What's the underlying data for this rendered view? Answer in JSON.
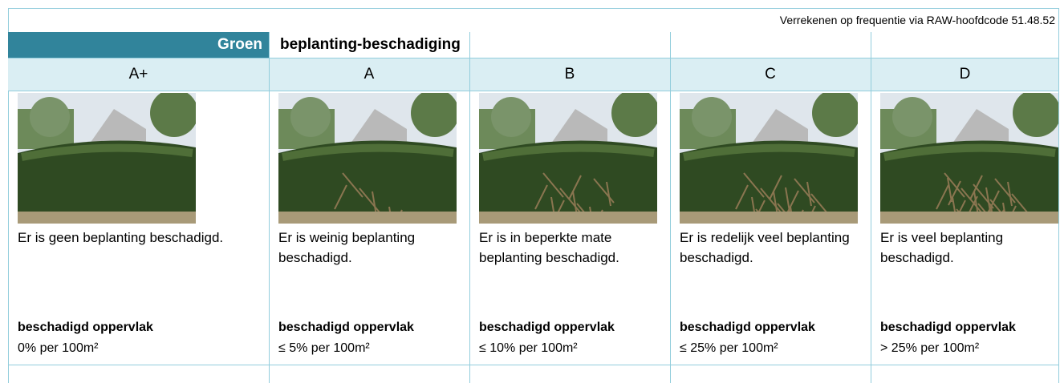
{
  "header": {
    "note": "Verrekenen op frequentie via RAW-hoofdcode 51.48.52",
    "category": "Groen",
    "title": "beplanting-beschadiging"
  },
  "columns": [
    {
      "grade": "A+",
      "description": "Er is geen beplanting beschadigd.",
      "measure_label": "beschadigd oppervlak",
      "measure_value": "0% per 100m²"
    },
    {
      "grade": "A",
      "description": "Er is weinig beplanting beschadigd.",
      "measure_label": "beschadigd oppervlak",
      "measure_value": "≤ 5% per 100m²"
    },
    {
      "grade": "B",
      "description": "Er is in beperkte mate beplanting beschadigd.",
      "measure_label": "beschadigd oppervlak",
      "measure_value": "≤ 10% per 100m²"
    },
    {
      "grade": "C",
      "description": "Er is redelijk veel beplanting beschadigd.",
      "measure_label": "beschadigd oppervlak",
      "measure_value": "≤ 25% per 100m²"
    },
    {
      "grade": "D",
      "description": "Er is veel beplanting beschadigd.",
      "measure_label": "beschadigd oppervlak",
      "measure_value": "> 25% per 100m²"
    }
  ]
}
